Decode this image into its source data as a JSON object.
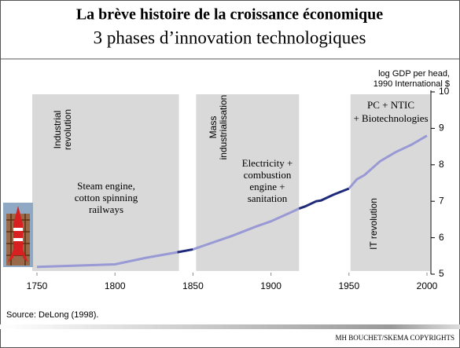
{
  "chart_data": {
    "type": "line",
    "title": "La brève histoire de la croissance économique",
    "subtitle": "3 phases d’innovation technologiques",
    "y_axis_label": [
      "log GDP per head,",
      "1990 International $"
    ],
    "source": "Source: DeLong (1998).",
    "footer": "MH BOUCHET/SKEMA COPYRIGHTS",
    "xlim": [
      1750,
      2000
    ],
    "xticks": [
      1750,
      1800,
      1850,
      1900,
      1950,
      2000
    ],
    "ylim": [
      5,
      10
    ],
    "yticks": [
      5,
      6,
      7,
      8,
      9,
      10
    ],
    "bands": [
      {
        "from": 1747,
        "to": 1841,
        "color": "#d9d9d9"
      },
      {
        "from": 1852,
        "to": 1918,
        "color": "#d9d9d9"
      },
      {
        "from": 1951,
        "to": 2002,
        "color": "#d9d9d9"
      }
    ],
    "annotations": [
      {
        "lines": [
          "Industrial",
          "revolution"
        ]
      },
      {
        "lines": [
          "Mass",
          "industrialisation"
        ]
      },
      {
        "lines": [
          "IT revolution"
        ]
      },
      {
        "lines": [
          "Steam engine,",
          "cotton spinning",
          "railways"
        ]
      },
      {
        "lines": [
          "Electricity +",
          "combustion",
          "engine +",
          "sanitation"
        ]
      },
      {
        "lines": [
          "PC + NTIC",
          "+ Biotechnologies"
        ]
      }
    ],
    "series": [
      {
        "color": "#9999d6",
        "x": [
          1750,
          1800,
          1820,
          1840
        ],
        "values": [
          5.2,
          5.27,
          5.45,
          5.6
        ]
      },
      {
        "color": "#1f2a7a",
        "x": [
          1840,
          1850
        ],
        "values": [
          5.6,
          5.68
        ]
      },
      {
        "color": "#9999d6",
        "x": [
          1850,
          1875,
          1890,
          1900,
          1913,
          1918
        ],
        "values": [
          5.68,
          6.05,
          6.3,
          6.45,
          6.7,
          6.8
        ]
      },
      {
        "color": "#1f2a7a",
        "x": [
          1918,
          1922,
          1929,
          1932,
          1940,
          1950
        ],
        "values": [
          6.8,
          6.86,
          7.0,
          7.02,
          7.18,
          7.35
        ]
      },
      {
        "color": "#9999d6",
        "x": [
          1950,
          1955,
          1960,
          1970,
          1980,
          1990,
          2000
        ],
        "values": [
          7.35,
          7.6,
          7.72,
          8.1,
          8.35,
          8.55,
          8.8
        ]
      }
    ]
  }
}
